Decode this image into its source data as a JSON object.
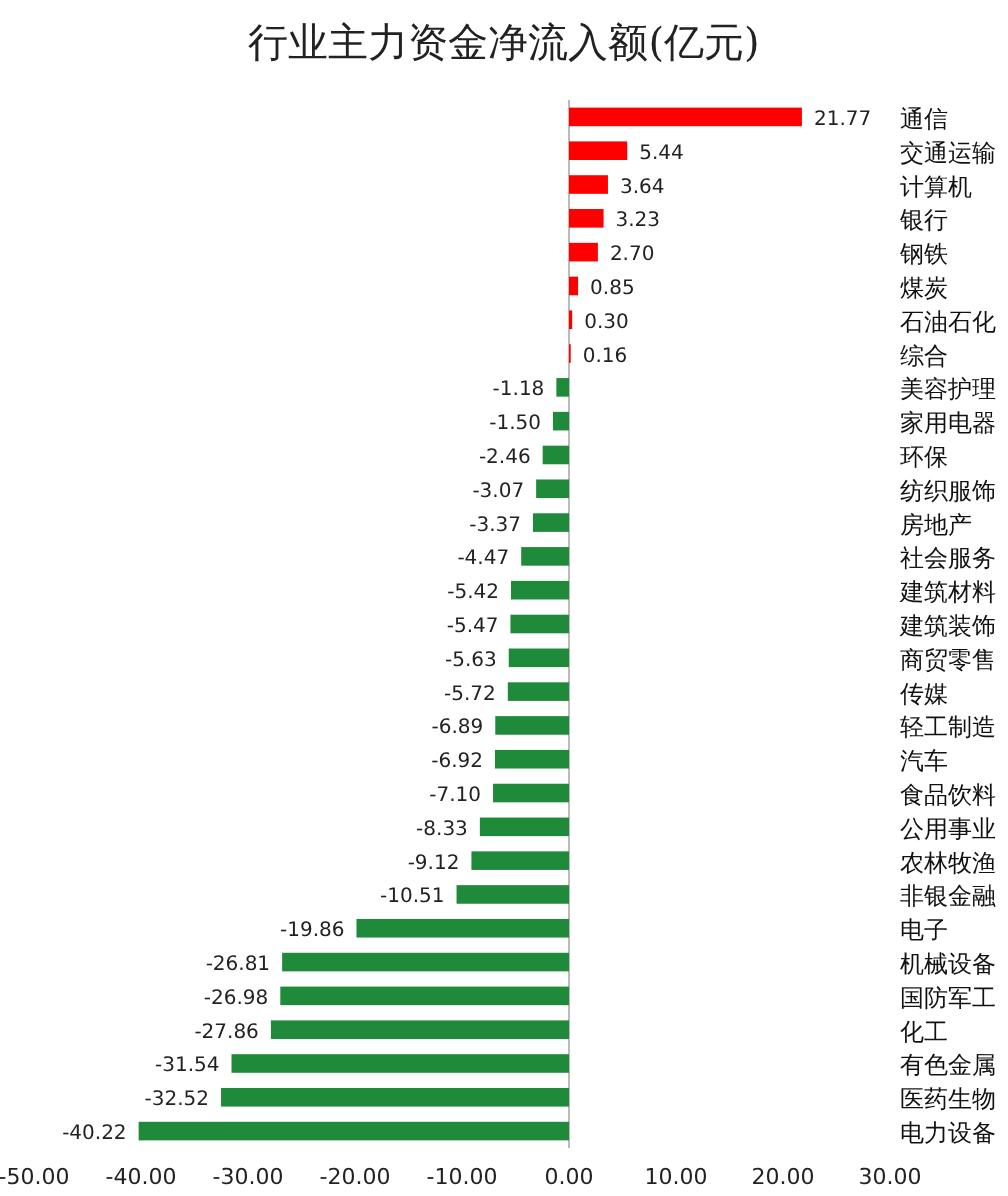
{
  "chart_data": {
    "type": "bar",
    "orientation": "horizontal",
    "title": "行业主力资金净流入额(亿元)",
    "categories": [
      "通信",
      "交通运输",
      "计算机",
      "银行",
      "钢铁",
      "煤炭",
      "石油石化",
      "综合",
      "美容护理",
      "家用电器",
      "环保",
      "纺织服饰",
      "房地产",
      "社会服务",
      "建筑材料",
      "建筑装饰",
      "商贸零售",
      "传媒",
      "轻工制造",
      "汽车",
      "食品饮料",
      "公用事业",
      "农林牧渔",
      "非银金融",
      "电子",
      "机械设备",
      "国防军工",
      "化工",
      "有色金属",
      "医药生物",
      "电力设备"
    ],
    "values": [
      21.77,
      5.44,
      3.64,
      3.23,
      2.7,
      0.85,
      0.3,
      0.16,
      -1.18,
      -1.5,
      -2.46,
      -3.07,
      -3.37,
      -4.47,
      -5.42,
      -5.47,
      -5.63,
      -5.72,
      -6.89,
      -6.92,
      -7.1,
      -8.33,
      -9.12,
      -10.51,
      -19.86,
      -26.81,
      -26.98,
      -27.86,
      -31.54,
      -32.52,
      -40.22
    ],
    "colors": [
      "#ff0000",
      "#ff0000",
      "#ff0000",
      "#ff0000",
      "#ff0000",
      "#ff0000",
      "#ff0000",
      "#ff0000",
      "#1f8a3a",
      "#1f8a3a",
      "#1f8a3a",
      "#1f8a3a",
      "#1f8a3a",
      "#1f8a3a",
      "#1f8a3a",
      "#1f8a3a",
      "#1f8a3a",
      "#1f8a3a",
      "#1f8a3a",
      "#1f8a3a",
      "#1f8a3a",
      "#1f8a3a",
      "#1f8a3a",
      "#1f8a3a",
      "#1f8a3a",
      "#1f8a3a",
      "#1f8a3a",
      "#1f8a3a",
      "#1f8a3a",
      "#1f8a3a",
      "#1f8a3a"
    ],
    "value_labels": [
      "21.77",
      "5.44",
      "3.64",
      "3.23",
      "2.70",
      "0.85",
      "0.30",
      "0.16",
      "-1.18",
      "-1.50",
      "-2.46",
      "-3.07",
      "-3.37",
      "-4.47",
      "-5.42",
      "-5.47",
      "-5.63",
      "-5.72",
      "-6.89",
      "-6.92",
      "-7.10",
      "-8.33",
      "-9.12",
      "-10.51",
      "-19.86",
      "-26.81",
      "-26.98",
      "-27.86",
      "-31.54",
      "-32.52",
      "-40.22"
    ],
    "xlim": [
      -50,
      30
    ],
    "xticks": [
      {
        "value": -50,
        "label": "-50.00"
      },
      {
        "value": -40,
        "label": "-40.00"
      },
      {
        "value": -30,
        "label": "-30.00"
      },
      {
        "value": -20,
        "label": "-20.00"
      },
      {
        "value": -10,
        "label": "-10.00"
      },
      {
        "value": 0,
        "label": "0.00"
      },
      {
        "value": 10,
        "label": "10.00"
      },
      {
        "value": 20,
        "label": "20.00"
      },
      {
        "value": 30,
        "label": "30.00"
      }
    ]
  }
}
